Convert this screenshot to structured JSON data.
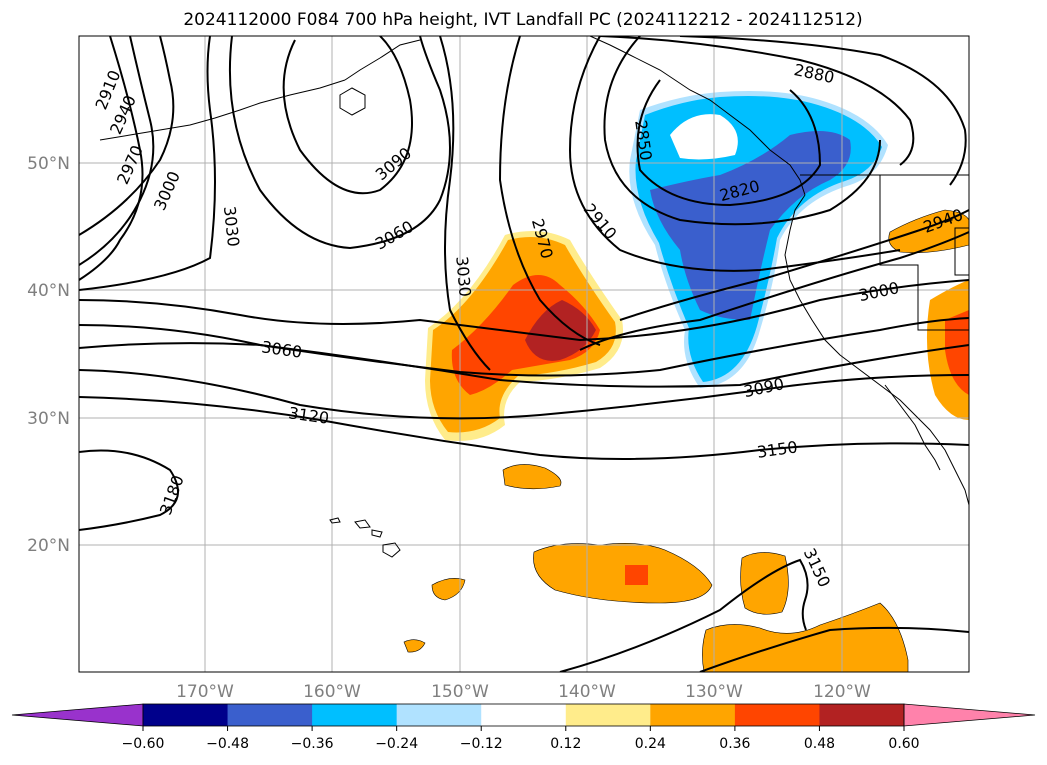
{
  "chart_data": {
    "type": "map-contour",
    "title": "2024112000 F084 700 hPa height, IVT Landfall PC (2024112212 - 2024112512)",
    "x_ticks": [
      "170°W",
      "160°W",
      "150°W",
      "140°W",
      "130°W",
      "120°W"
    ],
    "y_ticks": [
      "50°N",
      "40°N",
      "30°N",
      "20°N"
    ],
    "xlim": [
      -180,
      -110
    ],
    "ylim": [
      10,
      60
    ],
    "grid": true,
    "contour_variable": "700 hPa height",
    "contour_labels": [
      "2910",
      "2940",
      "2970",
      "3000",
      "3030",
      "3060",
      "3090",
      "3060",
      "3030",
      "2970",
      "2910",
      "2850",
      "2820",
      "2880",
      "2940",
      "3000",
      "3090",
      "3060",
      "3120",
      "3150",
      "3180",
      "3150"
    ],
    "colorbar": {
      "ticks": [
        "−0.60",
        "−0.48",
        "−0.36",
        "−0.24",
        "−0.12",
        "0.12",
        "0.24",
        "0.36",
        "0.48",
        "0.60"
      ],
      "levels": [
        -0.6,
        -0.48,
        -0.36,
        -0.24,
        -0.12,
        0.12,
        0.24,
        0.36,
        0.48,
        0.6
      ],
      "colors": [
        "#9932cc",
        "#00008b",
        "#3a5fcd",
        "#00bfff",
        "#b0e2ff",
        "#ffffff",
        "#ffec8b",
        "#ffa500",
        "#ff4500",
        "#b22222",
        "#ff82ab"
      ]
    }
  }
}
